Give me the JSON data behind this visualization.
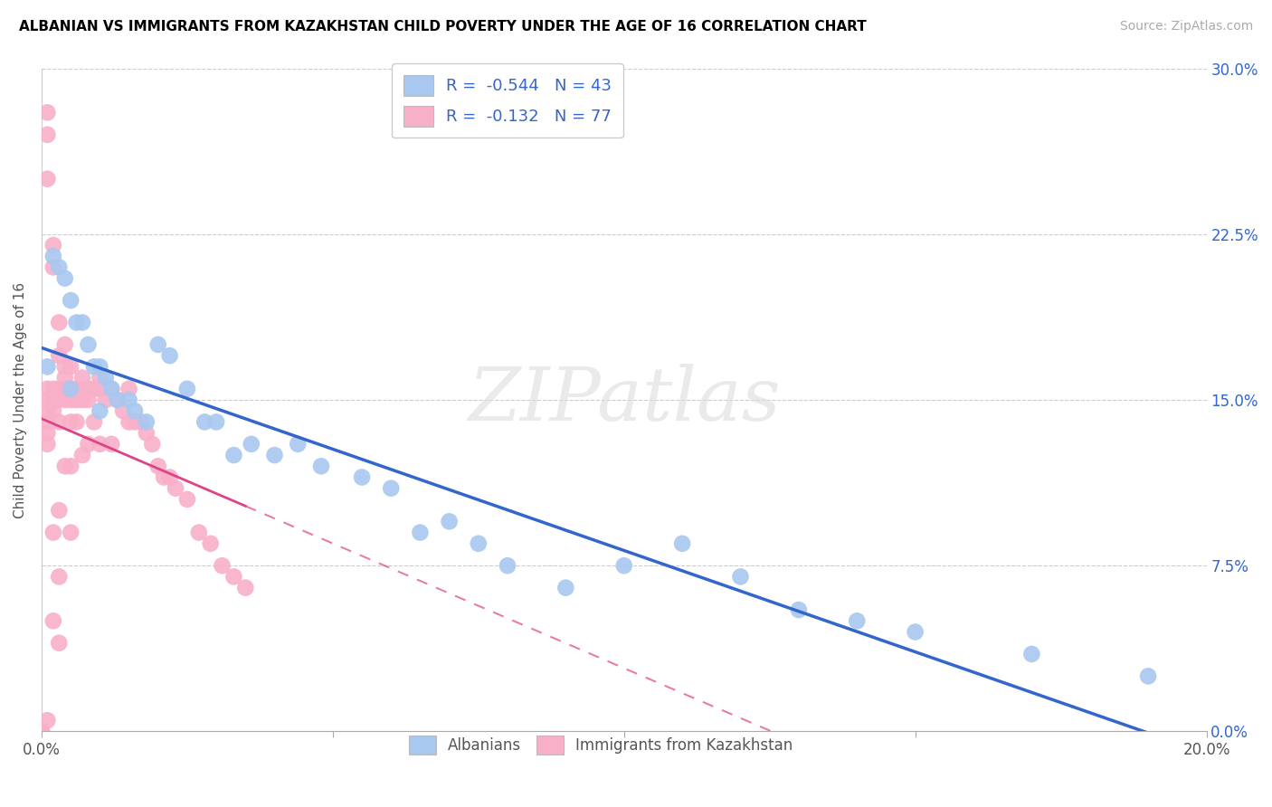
{
  "title": "ALBANIAN VS IMMIGRANTS FROM KAZAKHSTAN CHILD POVERTY UNDER THE AGE OF 16 CORRELATION CHART",
  "source": "Source: ZipAtlas.com",
  "ylabel": "Child Poverty Under the Age of 16",
  "legend_label_blue": "Albanians",
  "legend_label_pink": "Immigrants from Kazakhstan",
  "legend_r_blue": "R =  -0.544",
  "legend_n_blue": "N = 43",
  "legend_r_pink": "R =  -0.132",
  "legend_n_pink": "N = 77",
  "xlim": [
    0.0,
    0.2
  ],
  "ylim": [
    0.0,
    0.3
  ],
  "xtick_positions": [
    0.0,
    0.05,
    0.1,
    0.15,
    0.2
  ],
  "xtick_labels": [
    "0.0%",
    "",
    "",
    "",
    "20.0%"
  ],
  "ytick_positions": [
    0.0,
    0.075,
    0.15,
    0.225,
    0.3
  ],
  "ytick_labels_right": [
    "0.0%",
    "7.5%",
    "15.0%",
    "22.5%",
    "30.0%"
  ],
  "blue_color": "#A8C8F0",
  "pink_color": "#F8B0C8",
  "blue_line_color": "#3366CC",
  "pink_line_color": "#DD4488",
  "watermark": "ZIPatlas",
  "blue_scatter_x": [
    0.001,
    0.002,
    0.003,
    0.004,
    0.005,
    0.006,
    0.007,
    0.008,
    0.009,
    0.01,
    0.011,
    0.012,
    0.013,
    0.015,
    0.016,
    0.018,
    0.02,
    0.022,
    0.025,
    0.028,
    0.03,
    0.033,
    0.036,
    0.04,
    0.044,
    0.048,
    0.055,
    0.06,
    0.065,
    0.07,
    0.075,
    0.08,
    0.09,
    0.1,
    0.11,
    0.12,
    0.13,
    0.14,
    0.15,
    0.17,
    0.19,
    0.005,
    0.01
  ],
  "blue_scatter_y": [
    0.165,
    0.215,
    0.21,
    0.205,
    0.195,
    0.185,
    0.185,
    0.175,
    0.165,
    0.165,
    0.16,
    0.155,
    0.15,
    0.15,
    0.145,
    0.14,
    0.175,
    0.17,
    0.155,
    0.14,
    0.14,
    0.125,
    0.13,
    0.125,
    0.13,
    0.12,
    0.115,
    0.11,
    0.09,
    0.095,
    0.085,
    0.075,
    0.065,
    0.075,
    0.085,
    0.07,
    0.055,
    0.05,
    0.045,
    0.035,
    0.025,
    0.155,
    0.145
  ],
  "pink_scatter_x": [
    0.0,
    0.0,
    0.0,
    0.0,
    0.001,
    0.001,
    0.001,
    0.001,
    0.001,
    0.001,
    0.001,
    0.002,
    0.002,
    0.002,
    0.002,
    0.003,
    0.003,
    0.003,
    0.003,
    0.003,
    0.004,
    0.004,
    0.004,
    0.004,
    0.005,
    0.005,
    0.005,
    0.005,
    0.005,
    0.006,
    0.006,
    0.006,
    0.007,
    0.007,
    0.007,
    0.008,
    0.008,
    0.008,
    0.009,
    0.009,
    0.01,
    0.01,
    0.01,
    0.011,
    0.012,
    0.012,
    0.013,
    0.014,
    0.015,
    0.015,
    0.016,
    0.017,
    0.018,
    0.019,
    0.02,
    0.021,
    0.022,
    0.023,
    0.025,
    0.027,
    0.029,
    0.031,
    0.033,
    0.035,
    0.001,
    0.001,
    0.002,
    0.002,
    0.003,
    0.003,
    0.004,
    0.004,
    0.005,
    0.005,
    0.002,
    0.003,
    0.001
  ],
  "pink_scatter_y": [
    0.0,
    0.0,
    0.0,
    0.0,
    0.155,
    0.15,
    0.145,
    0.14,
    0.135,
    0.13,
    0.005,
    0.155,
    0.15,
    0.145,
    0.09,
    0.155,
    0.15,
    0.14,
    0.1,
    0.07,
    0.16,
    0.155,
    0.15,
    0.12,
    0.155,
    0.15,
    0.14,
    0.12,
    0.09,
    0.155,
    0.15,
    0.14,
    0.16,
    0.15,
    0.125,
    0.155,
    0.15,
    0.13,
    0.155,
    0.14,
    0.16,
    0.155,
    0.13,
    0.15,
    0.155,
    0.13,
    0.15,
    0.145,
    0.155,
    0.14,
    0.14,
    0.14,
    0.135,
    0.13,
    0.12,
    0.115,
    0.115,
    0.11,
    0.105,
    0.09,
    0.085,
    0.075,
    0.07,
    0.065,
    0.27,
    0.25,
    0.22,
    0.21,
    0.185,
    0.17,
    0.175,
    0.165,
    0.165,
    0.155,
    0.05,
    0.04,
    0.28
  ]
}
